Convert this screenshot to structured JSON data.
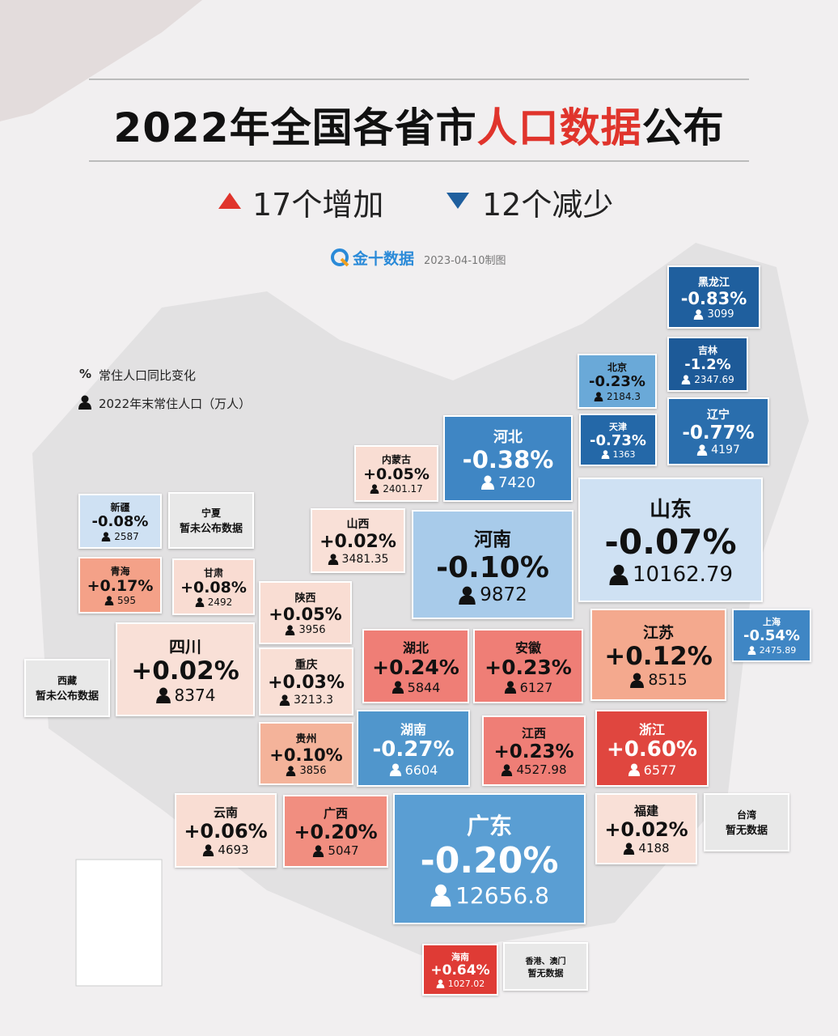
{
  "header": {
    "title_start": "2022年全国各省市",
    "title_highlight": "人口数据",
    "title_end": "公布",
    "increase": "17个增加",
    "decrease": "12个减少",
    "source": "金十数据",
    "date": "2023-04-10制图"
  },
  "legend": {
    "percent_symbol": "%",
    "percent_label": "常住人口同比变化",
    "population_label": "2022年末常住人口（万人）"
  },
  "tiles": [
    {
      "name": "黑龙江",
      "change": "-0.83%",
      "population": "3099",
      "color": "#1f5f9e"
    },
    {
      "name": "吉林",
      "change": "-1.2%",
      "population": "2347.69",
      "color": "#1d5a98"
    },
    {
      "name": "北京",
      "change": "-0.23%",
      "population": "2184.3",
      "color": "#6aa9d8"
    },
    {
      "name": "天津",
      "change": "-0.73%",
      "population": "1363",
      "color": "#2468a8"
    },
    {
      "name": "辽宁",
      "change": "-0.77%",
      "population": "4197",
      "color": "#2a6ead"
    },
    {
      "name": "河北",
      "change": "-0.38%",
      "population": "7420",
      "color": "#3f86c4"
    },
    {
      "name": "内蒙古",
      "change": "+0.05%",
      "population": "2401.17",
      "color": "#f9ddd3"
    },
    {
      "name": "新疆",
      "change": "-0.08%",
      "population": "2587",
      "color": "#cfe1f3"
    },
    {
      "name": "宁夏",
      "note": "暂未公布数据",
      "color": "#e8e8e8"
    },
    {
      "name": "山西",
      "change": "+0.02%",
      "population": "3481.35",
      "color": "#f9e0d7"
    },
    {
      "name": "河南",
      "change": "-0.10%",
      "population": "9872",
      "color": "#a8cbea"
    },
    {
      "name": "山东",
      "change": "-0.07%",
      "population": "10162.79",
      "color": "#cfe1f3"
    },
    {
      "name": "青海",
      "change": "+0.17%",
      "population": "595",
      "color": "#f4a188"
    },
    {
      "name": "甘肃",
      "change": "+0.08%",
      "population": "2492",
      "color": "#f9dcd2"
    },
    {
      "name": "陕西",
      "change": "+0.05%",
      "population": "3956",
      "color": "#f9ddd3"
    },
    {
      "name": "四川",
      "change": "+0.02%",
      "population": "8374",
      "color": "#f9e0d7"
    },
    {
      "name": "西藏",
      "note": "暂未公布数据",
      "color": "#e8e8e8"
    },
    {
      "name": "重庆",
      "change": "+0.03%",
      "population": "3213.3",
      "color": "#f9dfd5"
    },
    {
      "name": "湖北",
      "change": "+0.24%",
      "population": "5844",
      "color": "#ef7e76"
    },
    {
      "name": "安徽",
      "change": "+0.23%",
      "population": "6127",
      "color": "#ef7e76"
    },
    {
      "name": "江苏",
      "change": "+0.12%",
      "population": "8515",
      "color": "#f4a98e"
    },
    {
      "name": "上海",
      "change": "-0.54%",
      "population": "2475.89",
      "color": "#3f86c4"
    },
    {
      "name": "贵州",
      "change": "+0.10%",
      "population": "3856",
      "color": "#f4b39a"
    },
    {
      "name": "湖南",
      "change": "-0.27%",
      "population": "6604",
      "color": "#5096cc"
    },
    {
      "name": "江西",
      "change": "+0.23%",
      "population": "4527.98",
      "color": "#ef7e76"
    },
    {
      "name": "浙江",
      "change": "+0.60%",
      "population": "6577",
      "color": "#e0463f"
    },
    {
      "name": "云南",
      "change": "+0.06%",
      "population": "4693",
      "color": "#f9ddd3"
    },
    {
      "name": "广西",
      "change": "+0.20%",
      "population": "5047",
      "color": "#f18e80"
    },
    {
      "name": "广东",
      "change": "-0.20%",
      "population": "12656.8",
      "color": "#5a9ed3"
    },
    {
      "name": "福建",
      "change": "+0.02%",
      "population": "4188",
      "color": "#f9e0d7"
    },
    {
      "name": "台湾",
      "note": "暂无数据",
      "color": "#e8e8e8"
    },
    {
      "name": "海南",
      "change": "+0.64%",
      "population": "1027.02",
      "color": "#df3b35"
    },
    {
      "name": "香港、澳门",
      "note": "暂无数据",
      "color": "#e8e8e8"
    }
  ]
}
